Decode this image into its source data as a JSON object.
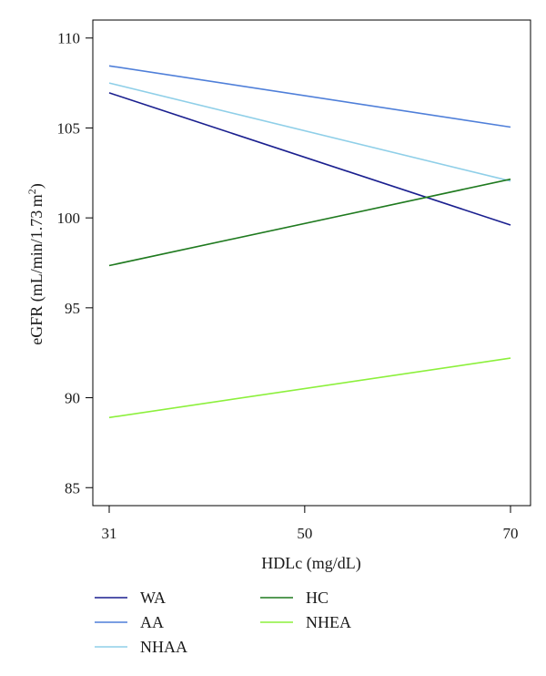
{
  "chart_data": {
    "type": "line",
    "xlabel": "HDLc (mg/dL)",
    "ylabel": "eGFR (mL/min/1.73 m2)",
    "ylabel_parts": [
      "eGFR (mL/min/1.73 m",
      "2",
      ")"
    ],
    "x_ticks": [
      31,
      50,
      70
    ],
    "y_ticks": [
      85,
      90,
      95,
      100,
      105,
      110
    ],
    "xlim": [
      31,
      70
    ],
    "ylim": [
      84,
      111
    ],
    "grid": false,
    "legend_position": "bottom",
    "series": [
      {
        "name": "WA",
        "color": "#1a1f8f",
        "x": [
          31,
          70
        ],
        "values": [
          106.95,
          99.6
        ]
      },
      {
        "name": "AA",
        "color": "#4f7fd9",
        "x": [
          31,
          70
        ],
        "values": [
          108.45,
          105.05
        ]
      },
      {
        "name": "NHAA",
        "color": "#8fcfe8",
        "x": [
          31,
          70
        ],
        "values": [
          107.5,
          102.05
        ]
      },
      {
        "name": "HC",
        "color": "#1f7a1f",
        "x": [
          31,
          70
        ],
        "values": [
          97.35,
          102.15
        ]
      },
      {
        "name": "NHEA",
        "color": "#8cf03c",
        "x": [
          31,
          70
        ],
        "values": [
          88.9,
          92.2
        ]
      }
    ]
  }
}
